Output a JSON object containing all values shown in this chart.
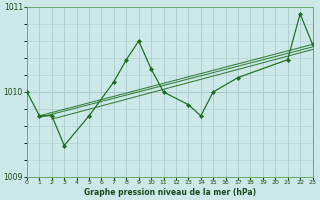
{
  "title": "Graphe pression niveau de la mer (hPa)",
  "bg_color": "#cde8e8",
  "grid_color": "#aacccc",
  "line_color": "#1a6b1a",
  "x_min": 0,
  "x_max": 23,
  "y_min": 1009.0,
  "y_max": 1011.0,
  "yticks": [
    1009,
    1010,
    1011
  ],
  "xticks": [
    0,
    1,
    2,
    3,
    4,
    5,
    6,
    7,
    8,
    9,
    10,
    11,
    12,
    13,
    14,
    15,
    16,
    17,
    18,
    19,
    20,
    21,
    22,
    23
  ],
  "main_x": [
    0,
    1,
    2,
    3,
    5,
    7,
    8,
    9,
    10,
    11,
    13,
    14,
    15,
    17,
    21,
    22,
    23
  ],
  "main_y": [
    1010.0,
    1009.72,
    1009.72,
    1009.37,
    1009.72,
    1010.12,
    1010.38,
    1010.6,
    1010.27,
    1010.0,
    1009.85,
    1009.72,
    1010.0,
    1010.17,
    1010.38,
    1010.92,
    1010.56
  ],
  "diag_lines": [
    {
      "x0": 1,
      "y0": 1009.72,
      "x1": 23,
      "y1": 1010.56
    },
    {
      "x0": 1,
      "y0": 1009.7,
      "x1": 23,
      "y1": 1010.53
    },
    {
      "x0": 2,
      "y0": 1009.68,
      "x1": 23,
      "y1": 1010.5
    }
  ]
}
